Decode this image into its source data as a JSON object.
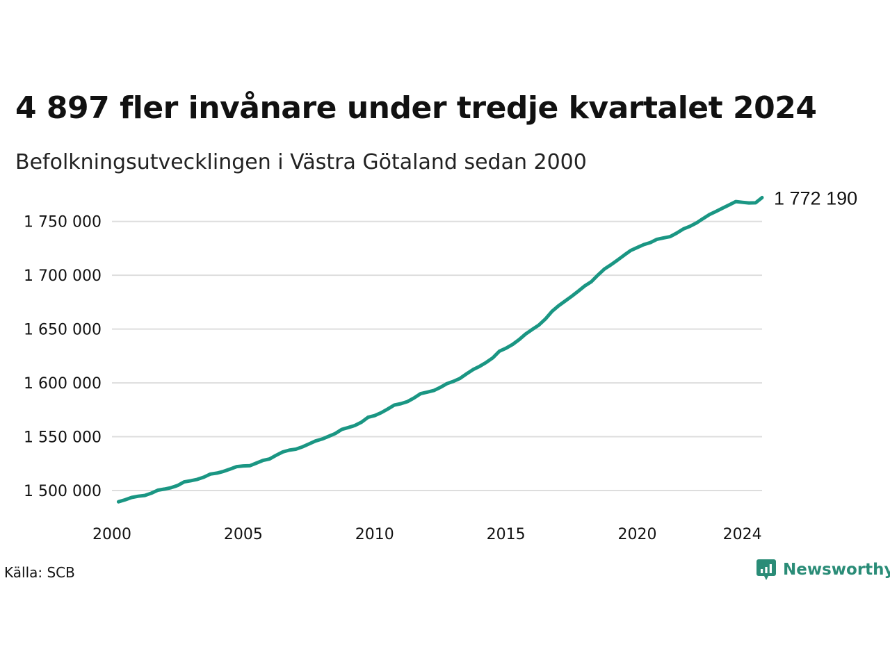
{
  "colors": {
    "line": "#1a9683",
    "grid": "#dddddd",
    "brand": "#2a8c77"
  },
  "footer": {
    "source": "Källa: SCB",
    "brand_name": "Newsworthy",
    "brand_icon": "newsworthy-logo-icon"
  },
  "chart_data": {
    "type": "line",
    "title": "4 897 fler invånare under tredje kvartalet 2024",
    "subtitle": "Befolkningsutvecklingen i Västra Götaland sedan 2000",
    "xlabel": "",
    "ylabel": "",
    "xlim": [
      2000.0,
      2024.75
    ],
    "ylim": [
      1489000,
      1775000
    ],
    "x_ticks": [
      2000,
      2005,
      2010,
      2015,
      2020,
      2024
    ],
    "x_tick_labels": [
      "2000",
      "2005",
      "2010",
      "2015",
      "2020",
      "2024"
    ],
    "y_ticks": [
      1500000,
      1550000,
      1600000,
      1650000,
      1700000,
      1750000
    ],
    "y_tick_labels": [
      "1 500 000",
      "1 550 000",
      "1 600 000",
      "1 650 000",
      "1 700 000",
      "1 750 000"
    ],
    "grid": true,
    "end_label": "1 772 190",
    "x": [
      2000.25,
      2000.5,
      2000.75,
      2001.0,
      2001.25,
      2001.5,
      2001.75,
      2002.0,
      2002.25,
      2002.5,
      2002.75,
      2003.0,
      2003.25,
      2003.5,
      2003.75,
      2004.0,
      2004.25,
      2004.5,
      2004.75,
      2005.0,
      2005.25,
      2005.5,
      2005.75,
      2006.0,
      2006.25,
      2006.5,
      2006.75,
      2007.0,
      2007.25,
      2007.5,
      2007.75,
      2008.0,
      2008.25,
      2008.5,
      2008.75,
      2009.0,
      2009.25,
      2009.5,
      2009.75,
      2010.0,
      2010.25,
      2010.5,
      2010.75,
      2011.0,
      2011.25,
      2011.5,
      2011.75,
      2012.0,
      2012.25,
      2012.5,
      2012.75,
      2013.0,
      2013.25,
      2013.5,
      2013.75,
      2014.0,
      2014.25,
      2014.5,
      2014.75,
      2015.0,
      2015.25,
      2015.5,
      2015.75,
      2016.0,
      2016.25,
      2016.5,
      2016.75,
      2017.0,
      2017.25,
      2017.5,
      2017.75,
      2018.0,
      2018.25,
      2018.5,
      2018.75,
      2019.0,
      2019.25,
      2019.5,
      2019.75,
      2020.0,
      2020.25,
      2020.5,
      2020.75,
      2021.0,
      2021.25,
      2021.5,
      2021.75,
      2022.0,
      2022.25,
      2022.5,
      2022.75,
      2023.0,
      2023.25,
      2023.5,
      2023.75,
      2024.0,
      2024.25,
      2024.5,
      2024.75
    ],
    "series": [
      {
        "values": [
          1489500,
          1491300,
          1493500,
          1494700,
          1495400,
          1497500,
          1500300,
          1501300,
          1502600,
          1504600,
          1508000,
          1509100,
          1510400,
          1512400,
          1515300,
          1516200,
          1517800,
          1519900,
          1522200,
          1522800,
          1523000,
          1525500,
          1527900,
          1529300,
          1532700,
          1535800,
          1537500,
          1538400,
          1540500,
          1543200,
          1546000,
          1547800,
          1550300,
          1552900,
          1556800,
          1558500,
          1560400,
          1563500,
          1568000,
          1569600,
          1572300,
          1575700,
          1579400,
          1580700,
          1582600,
          1586000,
          1590000,
          1591400,
          1592900,
          1595800,
          1599300,
          1601400,
          1604200,
          1608400,
          1612400,
          1615400,
          1619000,
          1623300,
          1629400,
          1632200,
          1635700,
          1640200,
          1645400,
          1649600,
          1653700,
          1659300,
          1666400,
          1671600,
          1676000,
          1680400,
          1685200,
          1690100,
          1694000,
          1700200,
          1705800,
          1709800,
          1714100,
          1718700,
          1723000,
          1725800,
          1728500,
          1730400,
          1733400,
          1734700,
          1735900,
          1739200,
          1743000,
          1745400,
          1748600,
          1752600,
          1756400,
          1759400,
          1762400,
          1765400,
          1768500,
          1767800,
          1767200,
          1767300,
          1772190
        ]
      }
    ]
  }
}
